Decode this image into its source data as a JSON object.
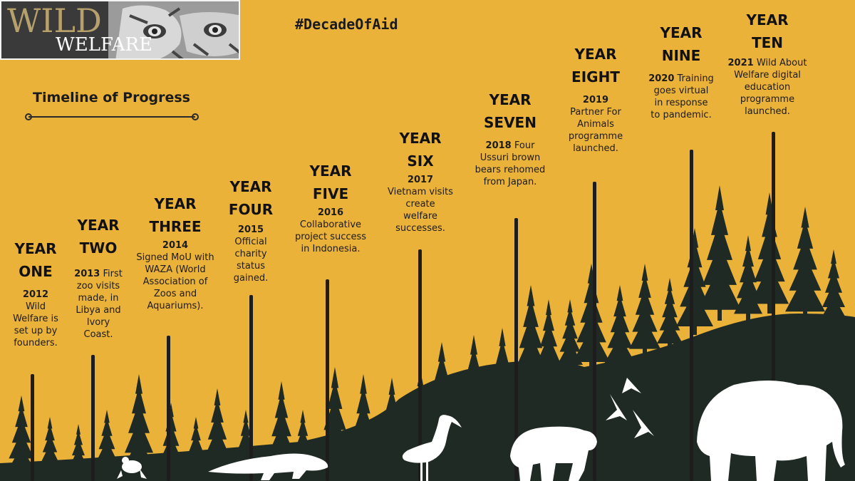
{
  "logo": {
    "line1": "WILD",
    "line2": "WELFARE"
  },
  "hashtag": "#DecadeOfAid",
  "timeline_title": "Timeline of Progress",
  "milestones": [
    {
      "year_label": "YEAR",
      "year_word": "ONE",
      "year": "2012",
      "text": "Wild Welfare is set up by founders."
    },
    {
      "year_label": "YEAR",
      "year_word": "TWO",
      "year": "2013",
      "text": "First zoo visits made, in Libya and Ivory Coast."
    },
    {
      "year_label": "YEAR",
      "year_word": "THREE",
      "year": "2014",
      "text": "Signed MoU with WAZA (World Association of Zoos and Aquariums)."
    },
    {
      "year_label": "YEAR",
      "year_word": "FOUR",
      "year": "2015",
      "text": "Official charity status gained."
    },
    {
      "year_label": "YEAR",
      "year_word": "FIVE",
      "year": "2016",
      "text": "Collaborative project success in Indonesia."
    },
    {
      "year_label": "YEAR",
      "year_word": "SIX",
      "year": "2017",
      "text": "Vietnam visits create welfare successes."
    },
    {
      "year_label": "YEAR",
      "year_word": "SEVEN",
      "year": "2018",
      "text": "Four Ussuri brown bears rehomed from Japan."
    },
    {
      "year_label": "YEAR",
      "year_word": "EIGHT",
      "year": "2019",
      "text": "Partner For Animals programme launched."
    },
    {
      "year_label": "YEAR",
      "year_word": "NINE",
      "year": "2020",
      "text": "Training goes virtual in response to pandemic."
    },
    {
      "year_label": "YEAR",
      "year_word": "TEN",
      "year": "2021",
      "text": "Wild About Welfare digital education programme launched."
    }
  ],
  "colors": {
    "background": "#EBB23A",
    "silhouette": "#1F2A25",
    "animals": "#FFFFFF"
  }
}
